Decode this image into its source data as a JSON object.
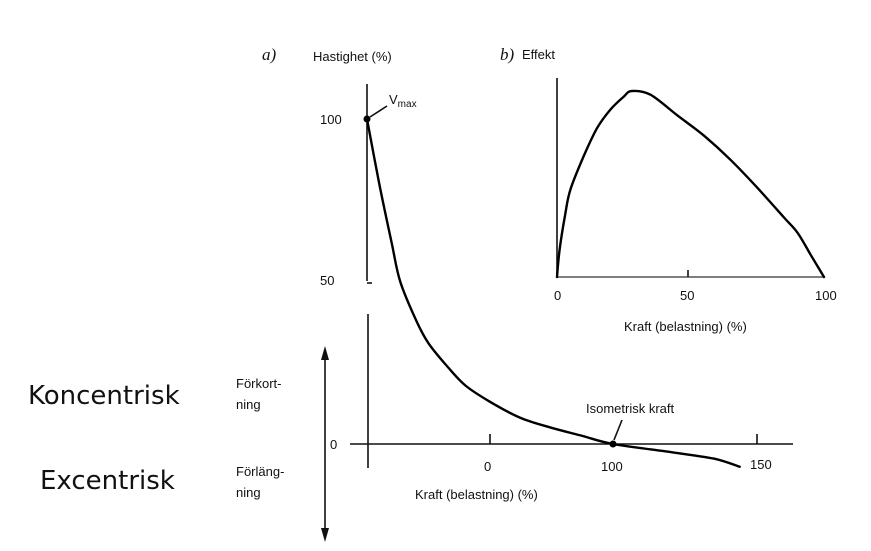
{
  "side_labels": {
    "concentric": "Koncentrisk",
    "eccentric": "Excentrisk",
    "shortening_1": "Förkort-",
    "shortening_2": "ning",
    "lengthening_1": "Förläng-",
    "lengthening_2": "ning"
  },
  "chart_data": [
    {
      "type": "line",
      "panel_label": "a)",
      "ylabel": "Hastighet (%)",
      "xlabel": "Kraft (belastning) (%)",
      "x_ticks": [
        "0",
        "100",
        "150"
      ],
      "y_ticks": [
        "100",
        "50",
        "0"
      ],
      "annotations": {
        "vmax": "V",
        "vmax_sub": "max",
        "isometric": "Isometrisk kraft"
      },
      "series": [
        {
          "points": [
            [
              -100,
              100
            ],
            [
              -90,
              80
            ],
            [
              -80,
              62
            ],
            [
              -73,
              50
            ],
            [
              -60,
              38
            ],
            [
              -50,
              31
            ],
            [
              -35,
              24
            ],
            [
              -20,
              18
            ],
            [
              0,
              13
            ],
            [
              25,
              8
            ],
            [
              50,
              5
            ],
            [
              75,
              2.5
            ],
            [
              100,
              0
            ],
            [
              120,
              -2.5
            ],
            [
              135,
              -4.5
            ],
            [
              144,
              -7
            ]
          ]
        }
      ],
      "marked_points": [
        [
          -100,
          100
        ],
        [
          100,
          0
        ]
      ]
    },
    {
      "type": "line",
      "panel_label": "b)",
      "ylabel": "Effekt",
      "xlabel": "Kraft (belastning) (%)",
      "x_ticks": [
        "0",
        "50",
        "100"
      ],
      "xlim": [
        0,
        100
      ],
      "series": [
        {
          "points": [
            [
              0,
              0
            ],
            [
              1,
              15
            ],
            [
              3,
              33
            ],
            [
              5,
              47
            ],
            [
              10,
              65
            ],
            [
              15,
              80
            ],
            [
              20,
              90
            ],
            [
              25,
              97
            ],
            [
              28,
              100
            ],
            [
              35,
              98
            ],
            [
              45,
              87
            ],
            [
              55,
              76
            ],
            [
              65,
              63
            ],
            [
              75,
              48
            ],
            [
              85,
              32
            ],
            [
              90,
              24
            ],
            [
              95,
              12
            ],
            [
              100,
              0
            ]
          ]
        }
      ]
    }
  ]
}
